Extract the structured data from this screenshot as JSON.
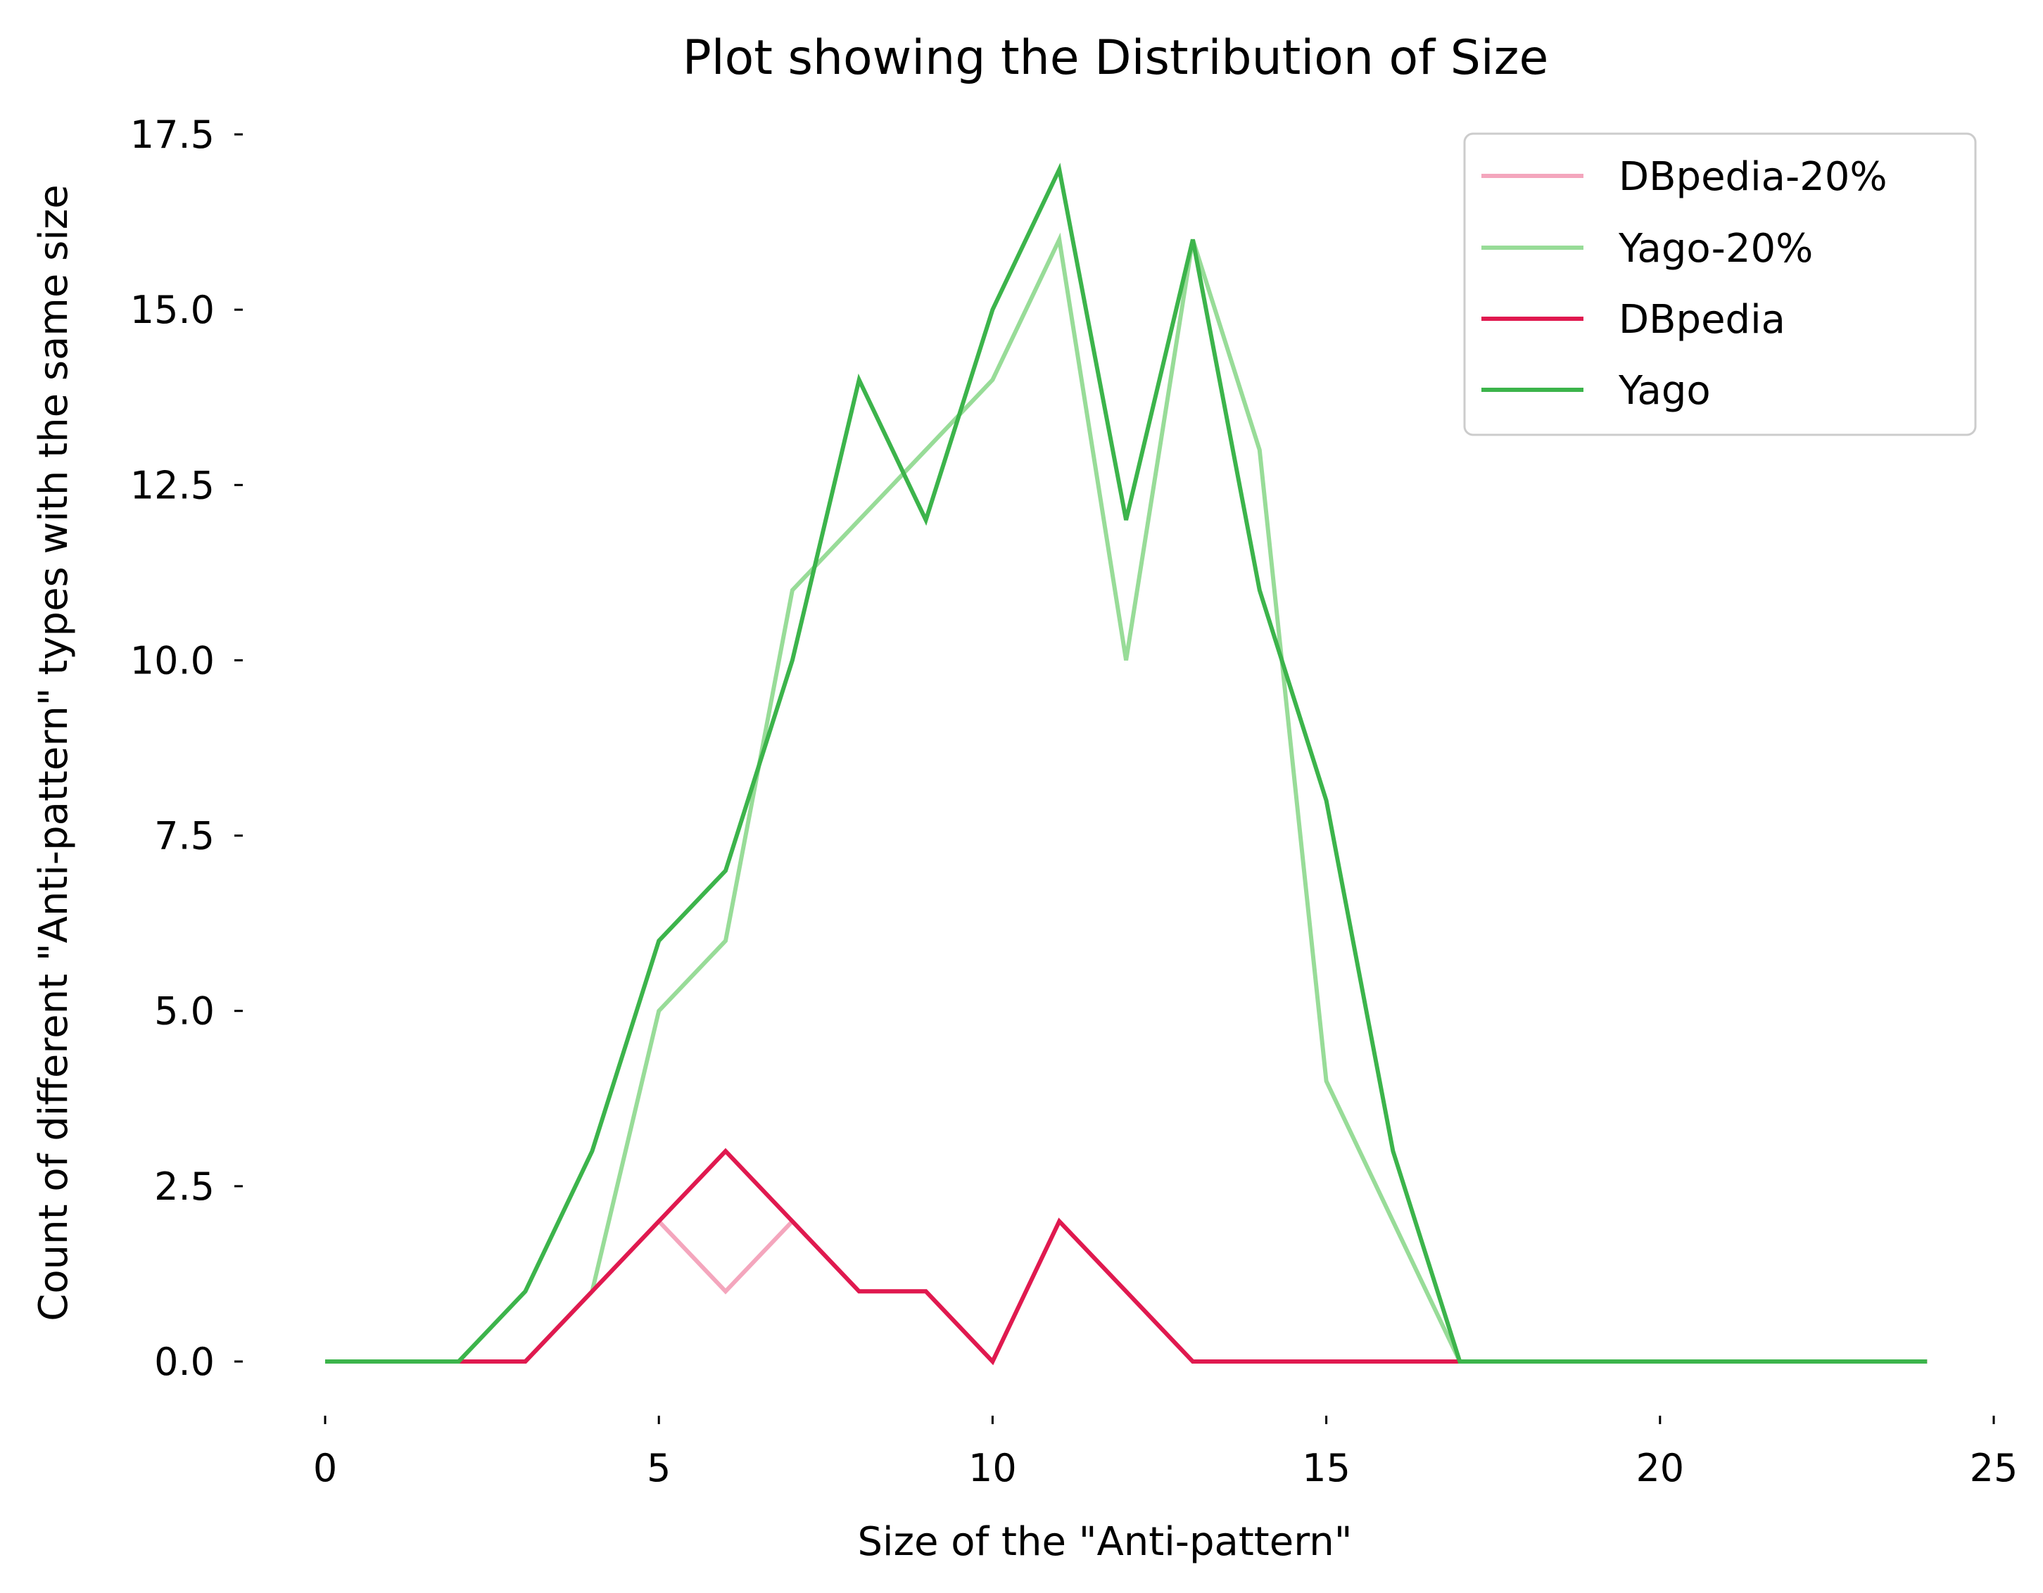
{
  "chart_data": {
    "type": "line",
    "title": "Plot showing the Distribution of Size",
    "xlabel": "Size of the \"Anti-pattern\"",
    "ylabel": "Count of different \"Anti-pattern\" types with the same size",
    "xlim": [
      -0.5,
      25
    ],
    "ylim": [
      -0.75,
      17.5
    ],
    "x_ticks": [
      "0",
      "5",
      "10",
      "15",
      "20",
      "25"
    ],
    "x_tick_values": [
      0,
      5,
      10,
      15,
      20,
      25
    ],
    "y_ticks": [
      "0.0",
      "2.5",
      "5.0",
      "7.5",
      "10.0",
      "12.5",
      "15.0",
      "17.5"
    ],
    "y_tick_values": [
      0,
      2.5,
      5,
      7.5,
      10,
      12.5,
      15,
      17.5
    ],
    "grid": false,
    "legend_position": "top-right",
    "x": [
      0,
      1,
      2,
      3,
      4,
      5,
      6,
      7,
      8,
      9,
      10,
      11,
      12,
      13,
      14,
      15,
      16,
      17,
      18,
      19,
      20,
      21,
      22,
      23,
      24
    ],
    "series": [
      {
        "name": "DBpedia-20%",
        "color": "#f4a6bd",
        "values": [
          0,
          0,
          0,
          0,
          1,
          2,
          1,
          2,
          1,
          1,
          0,
          2,
          1,
          0,
          0,
          0,
          0,
          0,
          0,
          0,
          0,
          0,
          0,
          0,
          0
        ]
      },
      {
        "name": "Yago-20%",
        "color": "#98dc98",
        "values": [
          0,
          0,
          0,
          0,
          1,
          5,
          6,
          11,
          12,
          13,
          14,
          16,
          10,
          16,
          13,
          4,
          2,
          0,
          0,
          0,
          0,
          0,
          0,
          0,
          0
        ]
      },
      {
        "name": "DBpedia",
        "color": "#e0194f",
        "values": [
          0,
          0,
          0,
          0,
          1,
          2,
          3,
          2,
          1,
          1,
          0,
          2,
          1,
          0,
          0,
          0,
          0,
          0,
          0,
          0,
          0,
          0,
          0,
          0,
          0
        ]
      },
      {
        "name": "Yago",
        "color": "#3cb44b",
        "values": [
          0,
          0,
          0,
          1,
          3,
          6,
          7,
          10,
          14,
          12,
          15,
          17,
          12,
          16,
          11,
          8,
          3,
          0,
          0,
          0,
          0,
          0,
          0,
          0,
          0
        ]
      }
    ]
  }
}
